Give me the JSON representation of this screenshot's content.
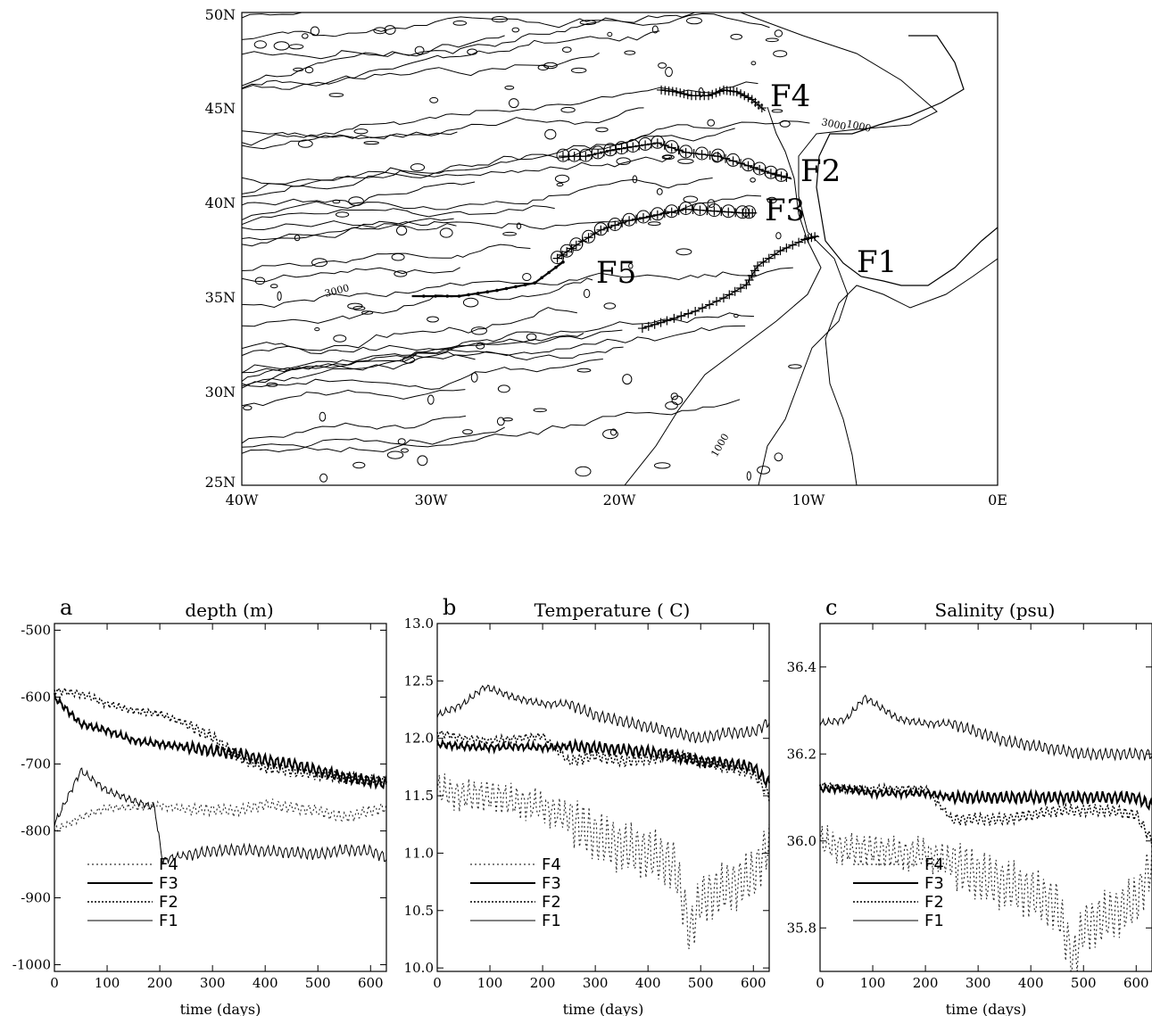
{
  "map": {
    "lat_labels": [
      "50N",
      "45N",
      "40N",
      "35N",
      "30N",
      "25N"
    ],
    "lon_labels": [
      "40W",
      "30W",
      "20W",
      "10W",
      "0E"
    ],
    "lat_range": [
      25,
      50
    ],
    "lon_range": [
      -40,
      0
    ],
    "contour_labels": [
      "3000",
      "1000",
      "1000",
      "3000"
    ],
    "float_labels": [
      "F1",
      "F2",
      "F3",
      "F4",
      "F5"
    ],
    "float_tracks": [
      {
        "name": "F4",
        "points": [
          [
            -17.8,
            45.9
          ],
          [
            -17,
            45.8
          ],
          [
            -16.2,
            45.6
          ],
          [
            -15.3,
            45.6
          ],
          [
            -14.5,
            45.9
          ],
          [
            -13.8,
            45.8
          ],
          [
            -13,
            45.4
          ],
          [
            -12.3,
            44.8
          ]
        ]
      },
      {
        "name": "F2",
        "points": [
          [
            -23,
            42.4
          ],
          [
            -21.8,
            42.4
          ],
          [
            -20.5,
            42.7
          ],
          [
            -19.3,
            42.9
          ],
          [
            -18,
            43.1
          ],
          [
            -16.5,
            42.6
          ],
          [
            -14.8,
            42.4
          ],
          [
            -13.2,
            41.9
          ],
          [
            -12,
            41.5
          ],
          [
            -10.9,
            41.2
          ]
        ]
      },
      {
        "name": "F3",
        "points": [
          [
            -23.3,
            37.0
          ],
          [
            -22.3,
            37.7
          ],
          [
            -21,
            38.5
          ],
          [
            -19.5,
            39.0
          ],
          [
            -18,
            39.3
          ],
          [
            -16.5,
            39.6
          ],
          [
            -15,
            39.5
          ],
          [
            -13.5,
            39.4
          ],
          [
            -12.8,
            39.4
          ]
        ]
      },
      {
        "name": "F1",
        "points": [
          [
            -18.8,
            33.3
          ],
          [
            -17.5,
            33.7
          ],
          [
            -16,
            34.2
          ],
          [
            -14.5,
            34.9
          ],
          [
            -13.3,
            35.6
          ],
          [
            -12.7,
            36.6
          ],
          [
            -11.5,
            37.4
          ],
          [
            -10.2,
            38.0
          ],
          [
            -9.5,
            38.2
          ]
        ]
      },
      {
        "name": "F5",
        "points": [
          [
            -23.0,
            36.8
          ],
          [
            -24.5,
            35.7
          ],
          [
            -26.5,
            35.3
          ],
          [
            -28.5,
            35.0
          ],
          [
            -31.0,
            35.0
          ]
        ]
      }
    ]
  },
  "chart_data": [
    {
      "type": "line",
      "panel_letter": "a",
      "title": "depth (m)",
      "xlabel": "time (days)",
      "ylabel": "",
      "xlim": [
        0,
        630
      ],
      "ylim": [
        -1010,
        -490
      ],
      "xticks": [
        0,
        100,
        200,
        300,
        400,
        500,
        600
      ],
      "yticks": [
        -1000,
        -900,
        -800,
        -700,
        -600,
        -500
      ],
      "legend": [
        "F4",
        "F3",
        "F2",
        "F1"
      ],
      "series": [
        {
          "name": "F4",
          "x": [
            0,
            50,
            100,
            150,
            200,
            250,
            300,
            350,
            400,
            450,
            500,
            550,
            600,
            630
          ],
          "y": [
            -800,
            -780,
            -765,
            -765,
            -762,
            -768,
            -768,
            -770,
            -760,
            -765,
            -770,
            -780,
            -770,
            -765
          ]
        },
        {
          "name": "F3",
          "x": [
            0,
            50,
            100,
            150,
            200,
            250,
            300,
            350,
            400,
            450,
            500,
            550,
            600,
            630
          ],
          "y": [
            -600,
            -640,
            -650,
            -665,
            -670,
            -675,
            -680,
            -685,
            -695,
            -700,
            -710,
            -720,
            -725,
            -730
          ]
        },
        {
          "name": "F2",
          "x": [
            0,
            50,
            100,
            150,
            200,
            250,
            300,
            350,
            400,
            450,
            500,
            550,
            600,
            630
          ],
          "y": [
            -590,
            -595,
            -610,
            -620,
            -625,
            -640,
            -660,
            -690,
            -705,
            -710,
            -715,
            -720,
            -725,
            -725
          ]
        },
        {
          "name": "F1",
          "x": [
            0,
            50,
            100,
            150,
            190,
            205,
            220,
            260,
            300,
            350,
            400,
            450,
            500,
            550,
            600,
            630
          ],
          "y": [
            -790,
            -710,
            -740,
            -755,
            -765,
            -845,
            -840,
            -835,
            -830,
            -828,
            -830,
            -832,
            -835,
            -828,
            -830,
            -840
          ]
        }
      ]
    },
    {
      "type": "line",
      "panel_letter": "b",
      "title": "Temperature ( C)",
      "xlabel": "time (days)",
      "ylabel": "",
      "xlim": [
        0,
        630
      ],
      "ylim": [
        9.97,
        13.0
      ],
      "xticks": [
        0,
        100,
        200,
        300,
        400,
        500,
        600
      ],
      "yticks": [
        10.0,
        10.5,
        11.0,
        11.5,
        12.0,
        12.5,
        13.0
      ],
      "legend": [
        "F4",
        "F3",
        "F2",
        "F1"
      ],
      "series": [
        {
          "name": "F4",
          "x": [
            0,
            50,
            100,
            150,
            200,
            250,
            300,
            350,
            400,
            450,
            480,
            500,
            550,
            600,
            630
          ],
          "y": [
            11.55,
            11.5,
            11.5,
            11.45,
            11.4,
            11.3,
            11.15,
            11.05,
            11.0,
            10.9,
            10.3,
            10.6,
            10.7,
            10.8,
            11.1
          ]
        },
        {
          "name": "F3",
          "x": [
            0,
            50,
            100,
            150,
            200,
            250,
            300,
            350,
            400,
            450,
            500,
            550,
            600,
            630
          ],
          "y": [
            11.95,
            11.93,
            11.92,
            11.93,
            11.92,
            11.93,
            11.92,
            11.9,
            11.88,
            11.85,
            11.8,
            11.78,
            11.75,
            11.6
          ]
        },
        {
          "name": "F2",
          "x": [
            0,
            50,
            100,
            150,
            200,
            250,
            300,
            350,
            400,
            450,
            500,
            550,
            600,
            630
          ],
          "y": [
            12.05,
            12.0,
            11.98,
            12.0,
            12.02,
            11.8,
            11.85,
            11.8,
            11.82,
            11.85,
            11.8,
            11.75,
            11.7,
            11.5
          ]
        },
        {
          "name": "F1",
          "x": [
            0,
            50,
            90,
            150,
            200,
            250,
            300,
            350,
            400,
            450,
            500,
            550,
            600,
            630
          ],
          "y": [
            12.2,
            12.3,
            12.45,
            12.35,
            12.3,
            12.3,
            12.2,
            12.15,
            12.1,
            12.05,
            12.0,
            12.05,
            12.05,
            12.15
          ]
        }
      ]
    },
    {
      "type": "line",
      "panel_letter": "c",
      "title": "Salinity (psu)",
      "xlabel": "time (days)",
      "ylabel": "",
      "xlim": [
        0,
        630
      ],
      "ylim": [
        35.7,
        36.5
      ],
      "xticks": [
        0,
        100,
        200,
        300,
        400,
        500,
        600
      ],
      "yticks": [
        35.8,
        36.0,
        36.2,
        36.4
      ],
      "legend": [
        "F4",
        "F3",
        "F2",
        "F1"
      ],
      "series": [
        {
          "name": "F4",
          "x": [
            0,
            50,
            100,
            150,
            200,
            250,
            300,
            350,
            400,
            450,
            480,
            500,
            550,
            600,
            630
          ],
          "y": [
            36.0,
            35.98,
            35.98,
            35.97,
            35.97,
            35.95,
            35.92,
            35.9,
            35.88,
            35.85,
            35.72,
            35.8,
            35.83,
            35.86,
            35.95
          ]
        },
        {
          "name": "F3",
          "x": [
            0,
            50,
            100,
            150,
            200,
            250,
            300,
            350,
            400,
            450,
            500,
            550,
            600,
            630
          ],
          "y": [
            36.12,
            36.12,
            36.11,
            36.11,
            36.11,
            36.1,
            36.1,
            36.1,
            36.1,
            36.1,
            36.1,
            36.1,
            36.1,
            36.08
          ]
        },
        {
          "name": "F2",
          "x": [
            0,
            50,
            100,
            150,
            200,
            250,
            300,
            350,
            400,
            450,
            500,
            550,
            600,
            630
          ],
          "y": [
            36.13,
            36.12,
            36.12,
            36.12,
            36.12,
            36.05,
            36.05,
            36.05,
            36.06,
            36.07,
            36.07,
            36.07,
            36.06,
            36.0
          ]
        },
        {
          "name": "F1",
          "x": [
            0,
            50,
            85,
            150,
            200,
            250,
            300,
            350,
            400,
            450,
            500,
            550,
            600,
            630
          ],
          "y": [
            36.27,
            36.28,
            36.33,
            36.28,
            36.27,
            36.27,
            36.25,
            36.23,
            36.22,
            36.21,
            36.2,
            36.2,
            36.2,
            36.2
          ]
        }
      ]
    }
  ]
}
